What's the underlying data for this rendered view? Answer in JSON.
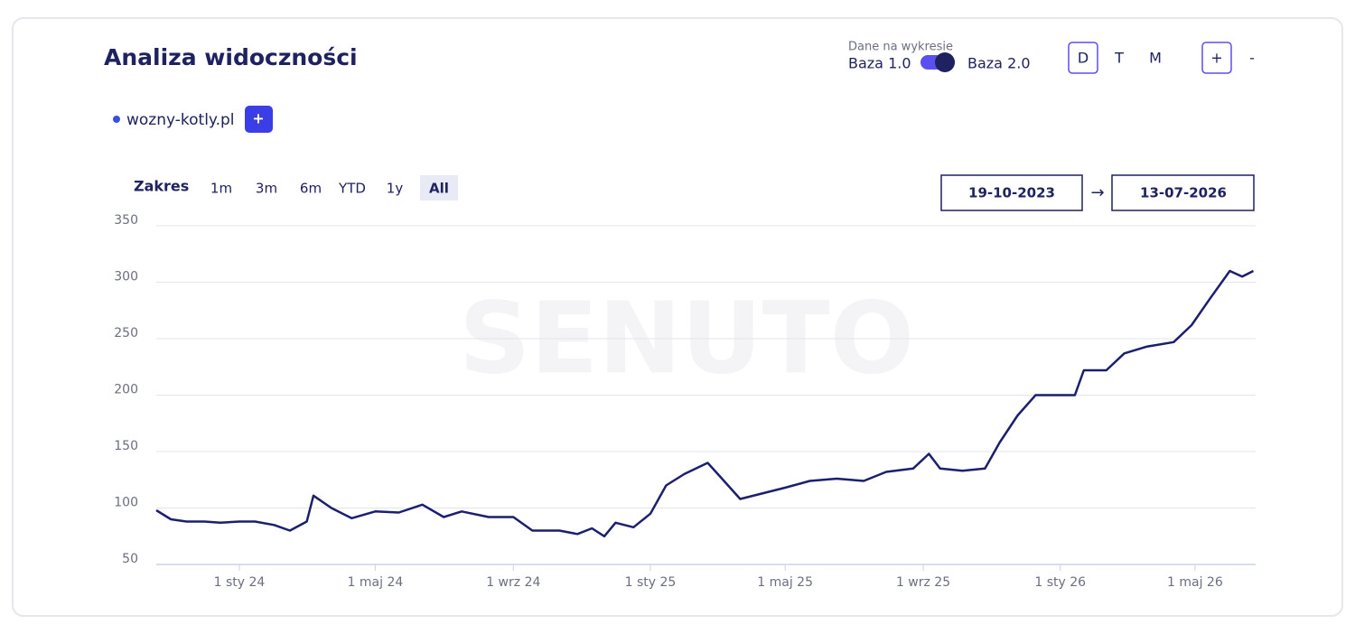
{
  "header": {
    "title": "Analiza widoczności",
    "toggle_label": "Dane na wykresie",
    "base_left": "Baza 1.0",
    "base_right": "Baza 2.0",
    "granularity": [
      "D",
      "T",
      "M"
    ],
    "granularity_active_index": 0,
    "zoom_in": "+",
    "zoom_out": "-"
  },
  "domains": [
    {
      "name": "wozny-kotly.pl",
      "color": "#3b4de0"
    }
  ],
  "add_button": "+",
  "range": {
    "label": "Zakres",
    "options": [
      "1m",
      "3m",
      "6m",
      "YTD",
      "1y",
      "All"
    ],
    "active_index": 5,
    "from": "19-10-2023",
    "arrow": "→",
    "to": "13-07-2026"
  },
  "watermark": "SENUTO",
  "chart_data": {
    "type": "line",
    "x": [
      "2023-10-19",
      "2023-11-01",
      "2023-11-15",
      "2023-12-01",
      "2023-12-15",
      "2024-01-01",
      "2024-01-15",
      "2024-02-01",
      "2024-02-15",
      "2024-03-01",
      "2024-03-07",
      "2024-03-23",
      "2024-04-10",
      "2024-05-01",
      "2024-05-22",
      "2024-06-12",
      "2024-07-01",
      "2024-07-17",
      "2024-08-10",
      "2024-09-01",
      "2024-09-18",
      "2024-10-12",
      "2024-10-28",
      "2024-11-10",
      "2024-11-21",
      "2024-12-01",
      "2024-12-17",
      "2025-01-01",
      "2025-01-15",
      "2025-01-31",
      "2025-02-21",
      "2025-03-04",
      "2025-03-22",
      "2025-04-07",
      "2025-05-01",
      "2025-05-23",
      "2025-06-16",
      "2025-07-10",
      "2025-07-30",
      "2025-08-23",
      "2025-09-06",
      "2025-09-16",
      "2025-10-06",
      "2025-10-26",
      "2025-11-08",
      "2025-11-24",
      "2025-12-10",
      "2026-01-01",
      "2026-01-14",
      "2026-01-22",
      "2026-02-11",
      "2026-02-27",
      "2026-03-19",
      "2026-04-12",
      "2026-04-28",
      "2026-05-14",
      "2026-06-01",
      "2026-06-12",
      "2026-06-22"
    ],
    "series": [
      {
        "name": "wozny-kotly.pl",
        "color": "#1c1f6e",
        "values": [
          98,
          90,
          88,
          88,
          87,
          88,
          88,
          85,
          80,
          88,
          111,
          100,
          91,
          97,
          96,
          103,
          92,
          97,
          92,
          92,
          80,
          80,
          77,
          82,
          75,
          87,
          83,
          95,
          120,
          130,
          140,
          128,
          108,
          112,
          118,
          124,
          126,
          124,
          132,
          135,
          148,
          135,
          133,
          135,
          158,
          182,
          200,
          200,
          200,
          222,
          222,
          237,
          243,
          247,
          262,
          285,
          310,
          305,
          310
        ]
      }
    ],
    "xlim": [
      "2023-10-19",
      "2026-06-24"
    ],
    "xticks": [
      {
        "value": "2024-01-01",
        "label": "1 sty 24"
      },
      {
        "value": "2024-05-01",
        "label": "1 maj 24"
      },
      {
        "value": "2024-09-01",
        "label": "1 wrz 24"
      },
      {
        "value": "2025-01-01",
        "label": "1 sty 25"
      },
      {
        "value": "2025-05-01",
        "label": "1 maj 25"
      },
      {
        "value": "2025-09-01",
        "label": "1 wrz 25"
      },
      {
        "value": "2026-01-01",
        "label": "1 sty 26"
      },
      {
        "value": "2026-05-01",
        "label": "1 maj 26"
      }
    ],
    "ylim": [
      50,
      350
    ],
    "yticks": [
      50,
      100,
      150,
      200,
      250,
      300,
      350
    ],
    "grid": true
  }
}
